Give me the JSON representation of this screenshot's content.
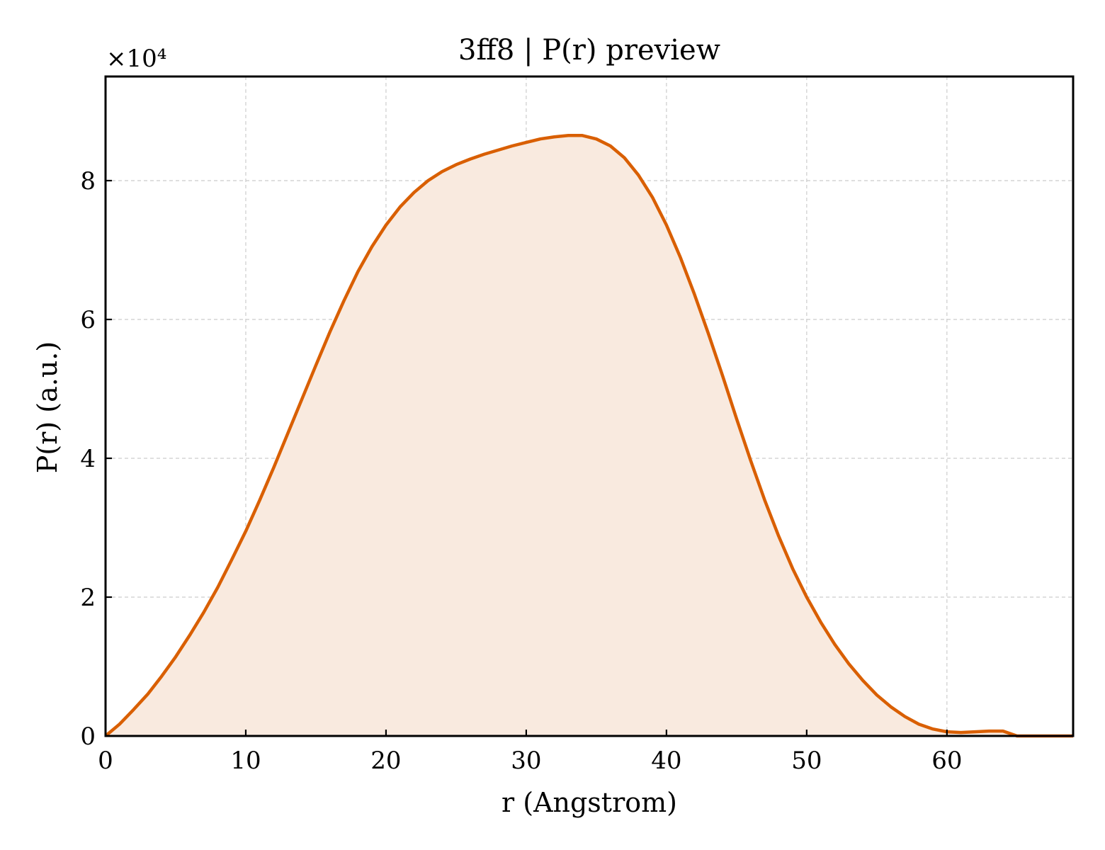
{
  "chart_data": {
    "type": "area",
    "title": "3ff8 | P(r) preview",
    "xlabel": "r (Angstrom)",
    "ylabel": "P(r) (a.u.)",
    "y_multiplier": "×10⁴",
    "xlim": [
      0,
      69
    ],
    "ylim": [
      0,
      9.5
    ],
    "xticks": [
      0,
      10,
      20,
      30,
      40,
      50,
      60
    ],
    "yticks": [
      0,
      2,
      4,
      6,
      8
    ],
    "grid": true,
    "line_color": "#d95f02",
    "fill_color": "#f9eadf",
    "series": [
      {
        "x": [
          0,
          1,
          2,
          3,
          4,
          5,
          6,
          7,
          8,
          9,
          10,
          11,
          12,
          13,
          14,
          15,
          16,
          17,
          18,
          19,
          20,
          21,
          22,
          23,
          24,
          25,
          26,
          27,
          28,
          29,
          30,
          31,
          32,
          33,
          34,
          35,
          36,
          37,
          38,
          39,
          40,
          41,
          42,
          43,
          44,
          45,
          46,
          47,
          48,
          49,
          50,
          51,
          52,
          53,
          54,
          55,
          56,
          57,
          58,
          59,
          60,
          61,
          62,
          63,
          64,
          65,
          66,
          67,
          68,
          69
        ],
        "y": [
          0,
          0.17,
          0.38,
          0.6,
          0.86,
          1.14,
          1.45,
          1.78,
          2.14,
          2.54,
          2.95,
          3.4,
          3.87,
          4.36,
          4.85,
          5.34,
          5.82,
          6.27,
          6.69,
          7.05,
          7.36,
          7.62,
          7.83,
          8.0,
          8.13,
          8.23,
          8.31,
          8.38,
          8.44,
          8.5,
          8.55,
          8.6,
          8.63,
          8.65,
          8.65,
          8.6,
          8.5,
          8.33,
          8.08,
          7.76,
          7.36,
          6.89,
          6.36,
          5.79,
          5.19,
          4.57,
          3.97,
          3.4,
          2.88,
          2.41,
          2.0,
          1.64,
          1.32,
          1.04,
          0.8,
          0.59,
          0.42,
          0.28,
          0.17,
          0.1,
          0.06,
          0.05,
          0.06,
          0.07,
          0.07,
          0.0,
          0.0,
          0.0,
          0.0,
          0.0
        ]
      }
    ]
  }
}
